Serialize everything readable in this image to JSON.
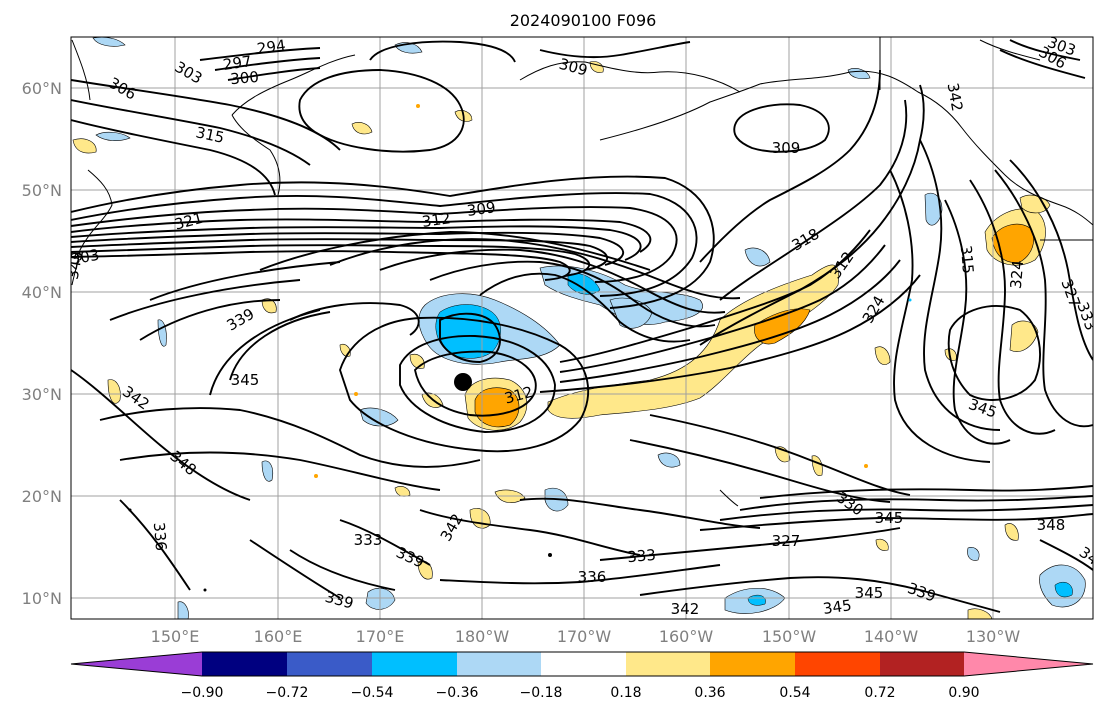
{
  "title": "2024090100 F096",
  "map": {
    "lon_ticks": [
      "150°E",
      "160°E",
      "170°E",
      "180°W",
      "170°W",
      "160°W",
      "150°W",
      "140°W",
      "130°W"
    ],
    "lat_ticks": [
      "60°N",
      "50°N",
      "40°N",
      "30°N",
      "20°N",
      "10°N"
    ],
    "contour_labels": [
      "294",
      "297",
      "300",
      "303",
      "306",
      "303",
      "306",
      "309",
      "315",
      "309",
      "312",
      "309",
      "321",
      "303",
      "318",
      "312",
      "315",
      "324",
      "324",
      "327",
      "333",
      "339",
      "345",
      "342",
      "312",
      "345",
      "348",
      "336",
      "333",
      "342",
      "339",
      "336",
      "333",
      "327",
      "330",
      "345",
      "348",
      "339",
      "342",
      "345",
      "345",
      "339",
      "342",
      "345",
      "34"
    ],
    "storm_marker": "storm-center-dot"
  },
  "colorbar": {
    "colors": [
      "#9a3dd6",
      "#000080",
      "#3a5bc8",
      "#00bfff",
      "#add8f5",
      "#ffffff",
      "#ffe88a",
      "#ffa500",
      "#ff4500",
      "#b22222",
      "#ff88aa"
    ],
    "tick_labels": [
      "−0.90",
      "−0.72",
      "−0.54",
      "−0.36",
      "−0.18",
      "0.18",
      "0.36",
      "0.54",
      "0.72",
      "0.90"
    ]
  }
}
